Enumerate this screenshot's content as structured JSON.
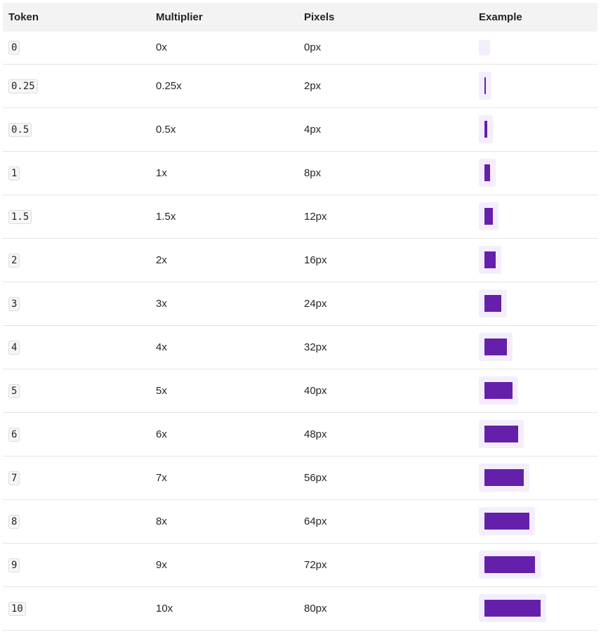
{
  "table": {
    "header": [
      "Token",
      "Multiplier",
      "Pixels",
      "Example"
    ],
    "rows": [
      [
        "0",
        "0x",
        "0px"
      ],
      [
        "0.25",
        "0.25x",
        "2px"
      ],
      [
        "0.5",
        "0.5x",
        "4px"
      ],
      [
        "1",
        "1x",
        "8px"
      ],
      [
        "1.5",
        "1.5x",
        "12px"
      ],
      [
        "2",
        "2x",
        "16px"
      ],
      [
        "3",
        "3x",
        "24px"
      ],
      [
        "4",
        "4x",
        "32px"
      ],
      [
        "5",
        "5x",
        "40px"
      ],
      [
        "6",
        "6x",
        "48px"
      ],
      [
        "7",
        "7x",
        "56px"
      ],
      [
        "8",
        "8x",
        "64px"
      ],
      [
        "9",
        "9x",
        "72px"
      ],
      [
        "10",
        "10x",
        "80px"
      ]
    ]
  }
}
